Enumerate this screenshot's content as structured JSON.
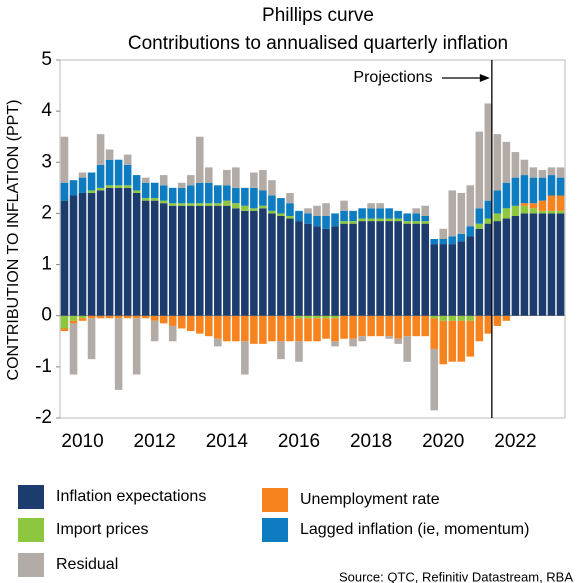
{
  "chart_data": {
    "type": "stacked_bar",
    "title": "Phillips curve",
    "subtitle": "Contributions to annualised quarterly inflation",
    "y_label": "CONTRIBUTION TO INFLATION (PPT)",
    "annotation": "Projections",
    "source": "Source: QTC, Refinitiv Datastream, RBA",
    "categories": [
      null,
      null,
      "2010",
      null,
      null,
      null,
      null,
      null,
      null,
      null,
      "2012",
      null,
      null,
      null,
      null,
      null,
      null,
      null,
      "2014",
      null,
      null,
      null,
      null,
      null,
      null,
      null,
      "2016",
      null,
      null,
      null,
      null,
      null,
      null,
      null,
      "2018",
      null,
      null,
      null,
      null,
      null,
      null,
      null,
      "2020",
      null,
      null,
      null,
      null,
      null,
      null,
      null,
      "2022",
      null,
      null,
      null,
      null,
      null
    ],
    "series": [
      {
        "name": "Inflation expectations",
        "color": "#1d3c6e",
        "values": [
          2.25,
          2.35,
          2.4,
          2.4,
          2.45,
          2.5,
          2.5,
          2.5,
          2.4,
          2.25,
          2.25,
          2.2,
          2.15,
          2.15,
          2.15,
          2.15,
          2.15,
          2.15,
          2.15,
          2.1,
          2.05,
          2.05,
          2.1,
          2.0,
          1.95,
          1.9,
          1.85,
          1.8,
          1.75,
          1.7,
          1.75,
          1.8,
          1.8,
          1.85,
          1.85,
          1.85,
          1.85,
          1.85,
          1.8,
          1.8,
          1.8,
          1.4,
          1.4,
          1.4,
          1.45,
          1.55,
          1.7,
          1.8,
          1.85,
          1.9,
          1.95,
          2.0,
          2.0,
          2.0,
          2.0,
          2.0
        ]
      },
      {
        "name": "Import prices",
        "color": "#8dc63f",
        "values": [
          -0.25,
          -0.1,
          -0.05,
          0.05,
          0.05,
          0.05,
          0.05,
          0.05,
          0.05,
          0.05,
          0.05,
          0.05,
          0.05,
          0.05,
          0.05,
          0.05,
          0.05,
          0.05,
          0.1,
          0.1,
          0.1,
          0.05,
          0.05,
          0.05,
          0.05,
          0.05,
          -0.05,
          -0.05,
          -0.05,
          -0.05,
          -0.05,
          0.05,
          0.05,
          0.05,
          0.05,
          0.05,
          0.05,
          0.05,
          0.05,
          0.05,
          0.05,
          -0.05,
          -0.1,
          -0.1,
          -0.1,
          -0.1,
          0.1,
          0.1,
          0.15,
          0.2,
          0.2,
          0.15,
          0.1,
          0.05,
          0.05,
          0.05
        ]
      },
      {
        "name": "Unemployment rate",
        "color": "#f7831e",
        "values": [
          -0.05,
          -0.05,
          -0.05,
          -0.05,
          -0.05,
          -0.05,
          -0.05,
          -0.05,
          -0.05,
          -0.05,
          -0.1,
          -0.15,
          -0.2,
          -0.25,
          -0.3,
          -0.35,
          -0.4,
          -0.45,
          -0.5,
          -0.5,
          -0.5,
          -0.55,
          -0.55,
          -0.5,
          -0.5,
          -0.5,
          -0.45,
          -0.45,
          -0.45,
          -0.4,
          -0.45,
          -0.45,
          -0.45,
          -0.4,
          -0.4,
          -0.4,
          -0.4,
          -0.45,
          -0.4,
          -0.4,
          -0.4,
          -0.6,
          -0.85,
          -0.8,
          -0.8,
          -0.7,
          -0.5,
          -0.35,
          -0.2,
          -0.1,
          0.0,
          0.05,
          0.1,
          0.2,
          0.3,
          0.3
        ]
      },
      {
        "name": "Lagged inflation (ie, momentum)",
        "color": "#0d7cc1",
        "values": [
          0.35,
          0.3,
          0.3,
          0.35,
          0.45,
          0.5,
          0.5,
          0.4,
          0.3,
          0.3,
          0.3,
          0.3,
          0.3,
          0.3,
          0.35,
          0.4,
          0.4,
          0.35,
          0.3,
          0.3,
          0.35,
          0.4,
          0.3,
          0.3,
          0.3,
          0.25,
          0.2,
          0.2,
          0.2,
          0.25,
          0.25,
          0.2,
          0.2,
          0.2,
          0.2,
          0.2,
          0.2,
          0.15,
          0.15,
          0.15,
          0.1,
          0.1,
          0.1,
          0.15,
          0.15,
          0.2,
          0.3,
          0.35,
          0.45,
          0.5,
          0.55,
          0.55,
          0.5,
          0.45,
          0.4,
          0.35
        ]
      },
      {
        "name": "Residual",
        "color": "#b3aba5",
        "values": [
          0.9,
          -1.0,
          0.1,
          -0.8,
          0.6,
          0.2,
          -1.4,
          0.2,
          -1.1,
          0.1,
          -0.4,
          0.2,
          -0.3,
          0.1,
          0.2,
          0.9,
          0.3,
          -0.15,
          0.3,
          0.4,
          -0.65,
          0.3,
          0.4,
          0.3,
          -0.35,
          0.2,
          -0.4,
          0.1,
          0.2,
          0.25,
          -0.1,
          0.2,
          -0.15,
          -0.1,
          0.1,
          0.1,
          -0.05,
          -0.1,
          -0.5,
          0.1,
          0.2,
          -1.2,
          0.2,
          0.9,
          0.8,
          0.8,
          1.5,
          1.9,
          1.1,
          0.8,
          0.5,
          0.3,
          0.2,
          0.15,
          0.15,
          0.2
        ]
      }
    ],
    "ylim": [
      -2,
      5
    ],
    "yticks": [
      -2,
      -1,
      0,
      1,
      2,
      3,
      4,
      5
    ],
    "grid": false
  }
}
